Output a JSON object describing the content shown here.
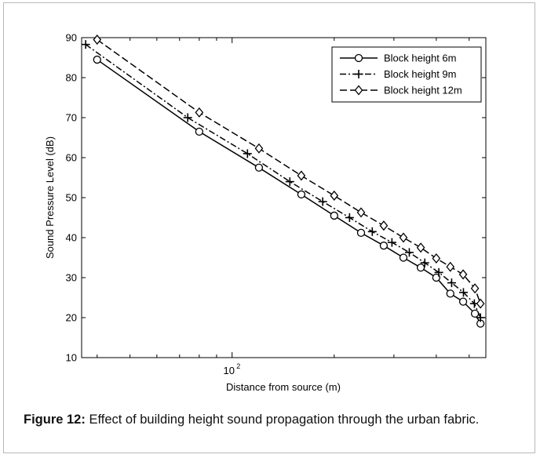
{
  "chart_data": {
    "type": "line",
    "xlabel": "Distance from source (m)",
    "ylabel": "Sound Pressure Level (dB)",
    "x_scale": "log",
    "xlim": [
      36,
      560
    ],
    "ylim": [
      10,
      90
    ],
    "x_tick_labels": [
      {
        "value": 100,
        "base": "10",
        "exp": "2"
      }
    ],
    "y_ticks": [
      10,
      20,
      30,
      40,
      50,
      60,
      70,
      80,
      90
    ],
    "grid": false,
    "legend_position": "top-right",
    "series": [
      {
        "name": "Block height 6m",
        "marker": "circle",
        "dash": "solid",
        "x": [
          40,
          80,
          120,
          160,
          200,
          240,
          280,
          320,
          360,
          400,
          440,
          480,
          520,
          540
        ],
        "y": [
          84.5,
          66.5,
          57.5,
          50.8,
          45.5,
          41.2,
          38.0,
          35.0,
          32.5,
          30.0,
          26.0,
          24.0,
          21.0,
          18.5
        ]
      },
      {
        "name": "Block height 9m",
        "marker": "plus",
        "dash": "dashdot",
        "x": [
          37,
          74,
          111,
          148,
          185,
          222,
          259,
          296,
          333,
          370,
          407,
          444,
          481,
          518,
          540
        ],
        "y": [
          88.3,
          70.0,
          61.0,
          54.0,
          49.0,
          45.0,
          41.5,
          38.8,
          36.3,
          33.7,
          31.3,
          28.7,
          26.3,
          23.5,
          20.0
        ]
      },
      {
        "name": "Block height 12m",
        "marker": "diamond",
        "dash": "dashed",
        "x": [
          40,
          80,
          120,
          160,
          200,
          240,
          280,
          320,
          360,
          400,
          440,
          480,
          520,
          540
        ],
        "y": [
          89.5,
          71.3,
          62.3,
          55.5,
          50.5,
          46.3,
          43.0,
          40.0,
          37.5,
          34.8,
          32.7,
          30.8,
          27.3,
          23.5
        ]
      }
    ]
  },
  "caption": {
    "label": "Figure 12:",
    "text": " Effect of building height sound propagation through the urban fabric."
  }
}
